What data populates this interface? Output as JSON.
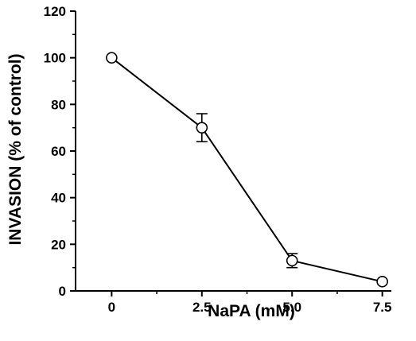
{
  "chart_data": {
    "type": "line",
    "title": "",
    "xlabel": "NaPA (mM)",
    "ylabel": "INVASION (% of control)",
    "x": [
      0,
      2.5,
      5.0,
      7.5
    ],
    "x_tick_labels": [
      "0",
      "2.5",
      "5.0",
      "7.5"
    ],
    "xlim": [
      -1.0,
      7.75
    ],
    "ylim": [
      0,
      120
    ],
    "y_ticks": [
      0,
      20,
      40,
      60,
      80,
      100,
      120
    ],
    "y_tick_labels": [
      "0",
      "20",
      "40",
      "60",
      "80",
      "100",
      "120"
    ],
    "series": [
      {
        "values": [
          100,
          70,
          13,
          4
        ],
        "error": [
          0,
          6,
          3,
          0
        ],
        "marker": "open-circle",
        "color": "#000000"
      }
    ],
    "grid": false,
    "legend": "none"
  }
}
